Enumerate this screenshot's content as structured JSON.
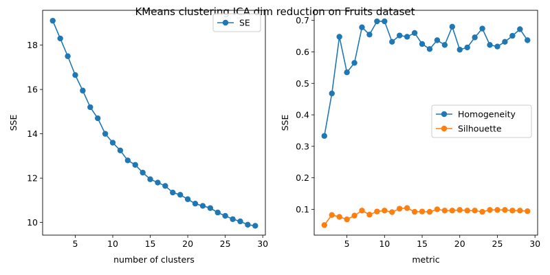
{
  "figure": {
    "suptitle": "KMeans clustering ICA dim reduction on Fruits dataset"
  },
  "chart_data": [
    {
      "type": "line",
      "xlabel": "number of clusters",
      "ylabel": "SSE",
      "xlim": [
        0.65,
        30.35
      ],
      "ylim": [
        9.43,
        19.57
      ],
      "xticks": [
        5,
        10,
        15,
        20,
        25,
        30
      ],
      "yticks": [
        10,
        12,
        14,
        16,
        18
      ],
      "legend_position": "top-right",
      "series": [
        {
          "name": "SE",
          "color": "#1f77b4",
          "x": [
            2,
            3,
            4,
            5,
            6,
            7,
            8,
            9,
            10,
            11,
            12,
            13,
            14,
            15,
            16,
            17,
            18,
            19,
            20,
            21,
            22,
            23,
            24,
            25,
            26,
            27,
            28,
            29
          ],
          "y": [
            19.1,
            18.3,
            17.5,
            16.65,
            15.95,
            15.2,
            14.7,
            14.0,
            13.6,
            13.25,
            12.8,
            12.6,
            12.25,
            11.95,
            11.8,
            11.65,
            11.35,
            11.25,
            11.05,
            10.85,
            10.75,
            10.65,
            10.45,
            10.3,
            10.15,
            10.05,
            9.9,
            9.85
          ]
        }
      ]
    },
    {
      "type": "line",
      "xlabel": "metric",
      "ylabel": "SSE",
      "xlim": [
        0.65,
        30.35
      ],
      "ylim": [
        0.018,
        0.732
      ],
      "xticks": [
        5,
        10,
        15,
        20,
        25,
        30
      ],
      "yticks": [
        0.1,
        0.2,
        0.3,
        0.4,
        0.5,
        0.6,
        0.7
      ],
      "legend_position": "center-right",
      "series": [
        {
          "name": "Homogeneity",
          "color": "#1f77b4",
          "x": [
            2,
            3,
            4,
            5,
            6,
            7,
            8,
            9,
            10,
            11,
            12,
            13,
            14,
            15,
            16,
            17,
            18,
            19,
            20,
            21,
            22,
            23,
            24,
            25,
            26,
            27,
            28,
            29
          ],
          "y": [
            0.333,
            0.468,
            0.648,
            0.535,
            0.565,
            0.678,
            0.655,
            0.697,
            0.697,
            0.632,
            0.652,
            0.648,
            0.66,
            0.625,
            0.609,
            0.637,
            0.622,
            0.68,
            0.607,
            0.614,
            0.646,
            0.674,
            0.622,
            0.617,
            0.632,
            0.651,
            0.672,
            0.637
          ]
        },
        {
          "name": "Silhouette",
          "color": "#ff7f0e",
          "x": [
            2,
            3,
            4,
            5,
            6,
            7,
            8,
            9,
            10,
            11,
            12,
            13,
            14,
            15,
            16,
            17,
            18,
            19,
            20,
            21,
            22,
            23,
            24,
            25,
            26,
            27,
            28,
            29
          ],
          "y": [
            0.05,
            0.082,
            0.076,
            0.068,
            0.08,
            0.096,
            0.083,
            0.093,
            0.096,
            0.091,
            0.102,
            0.104,
            0.092,
            0.093,
            0.092,
            0.1,
            0.096,
            0.096,
            0.098,
            0.096,
            0.096,
            0.092,
            0.098,
            0.098,
            0.098,
            0.096,
            0.096,
            0.094
          ]
        }
      ]
    }
  ]
}
